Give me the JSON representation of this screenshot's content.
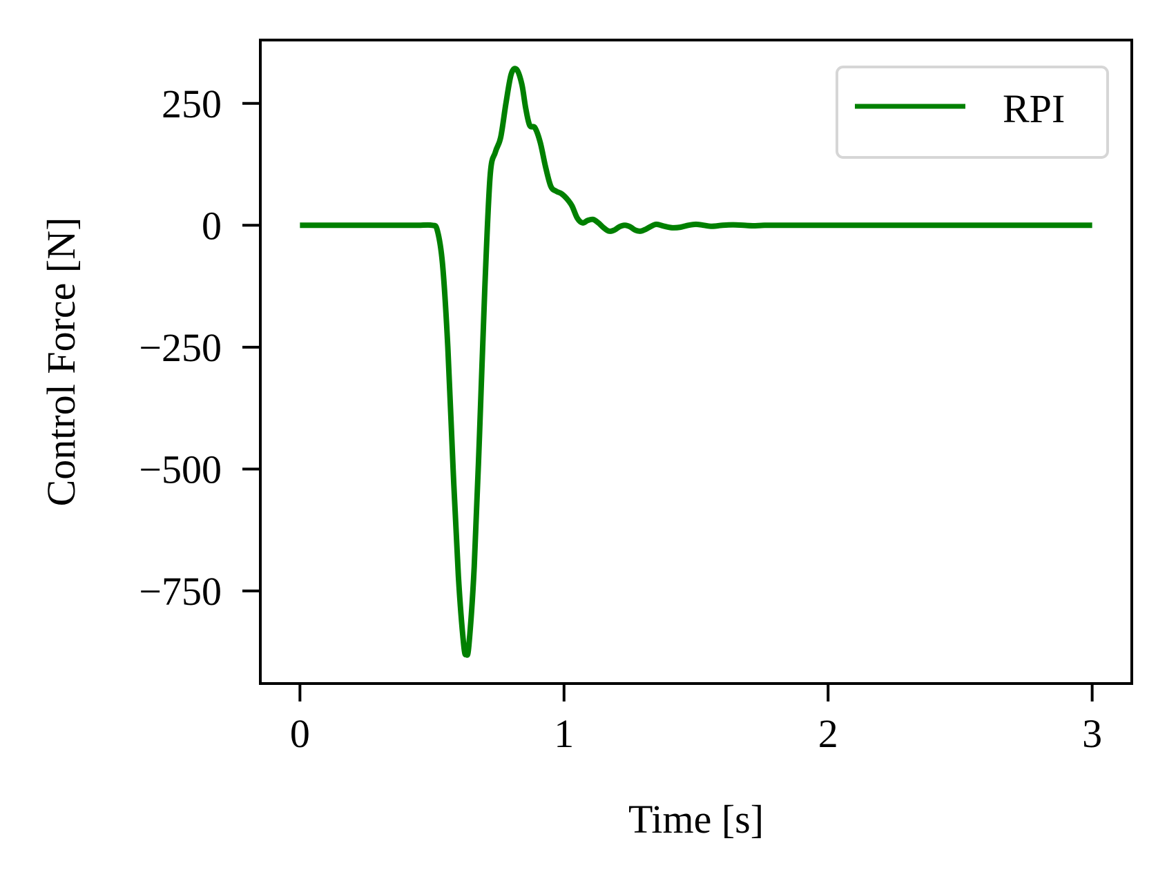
{
  "chart_data": {
    "type": "line",
    "xlabel": "Time [s]",
    "ylabel": "Control Force [N]",
    "xlim": [
      -0.15,
      3.15
    ],
    "ylim": [
      -940,
      380
    ],
    "xticks": [
      0,
      1,
      2,
      3
    ],
    "xtick_labels": [
      "0",
      "1",
      "2",
      "3"
    ],
    "yticks": [
      250,
      0,
      -250,
      -500,
      -750
    ],
    "ytick_labels": [
      "250",
      "0",
      "−250",
      "−500",
      "−750"
    ],
    "grid": false,
    "legend_position": "top-right",
    "series": [
      {
        "name": "RPI",
        "color": "#008000",
        "x": [
          0,
          0.1,
          0.2,
          0.3,
          0.4,
          0.45,
          0.5,
          0.52,
          0.54,
          0.56,
          0.58,
          0.6,
          0.62,
          0.63,
          0.64,
          0.66,
          0.68,
          0.7,
          0.72,
          0.74,
          0.76,
          0.78,
          0.8,
          0.82,
          0.84,
          0.855,
          0.87,
          0.89,
          0.91,
          0.93,
          0.95,
          0.97,
          0.99,
          1.01,
          1.03,
          1.05,
          1.07,
          1.09,
          1.11,
          1.13,
          1.15,
          1.17,
          1.19,
          1.21,
          1.23,
          1.25,
          1.27,
          1.29,
          1.31,
          1.33,
          1.35,
          1.38,
          1.41,
          1.44,
          1.47,
          1.5,
          1.53,
          1.56,
          1.6,
          1.64,
          1.68,
          1.72,
          1.76,
          1.8,
          1.9,
          2.0,
          2.2,
          2.4,
          2.6,
          2.8,
          3.0
        ],
        "values": [
          0,
          0,
          0,
          0,
          0,
          0,
          0,
          -10,
          -80,
          -250,
          -500,
          -720,
          -860,
          -880,
          -860,
          -700,
          -430,
          -130,
          100,
          150,
          180,
          250,
          310,
          320,
          290,
          240,
          205,
          200,
          170,
          120,
          80,
          70,
          65,
          55,
          40,
          15,
          5,
          10,
          12,
          5,
          -5,
          -12,
          -10,
          -3,
          0,
          -3,
          -10,
          -12,
          -8,
          -2,
          2,
          -2,
          -5,
          -4,
          0,
          2,
          0,
          -2,
          0,
          1,
          0,
          -1,
          0,
          0,
          0,
          0,
          0,
          0,
          0,
          0,
          0
        ]
      }
    ]
  }
}
